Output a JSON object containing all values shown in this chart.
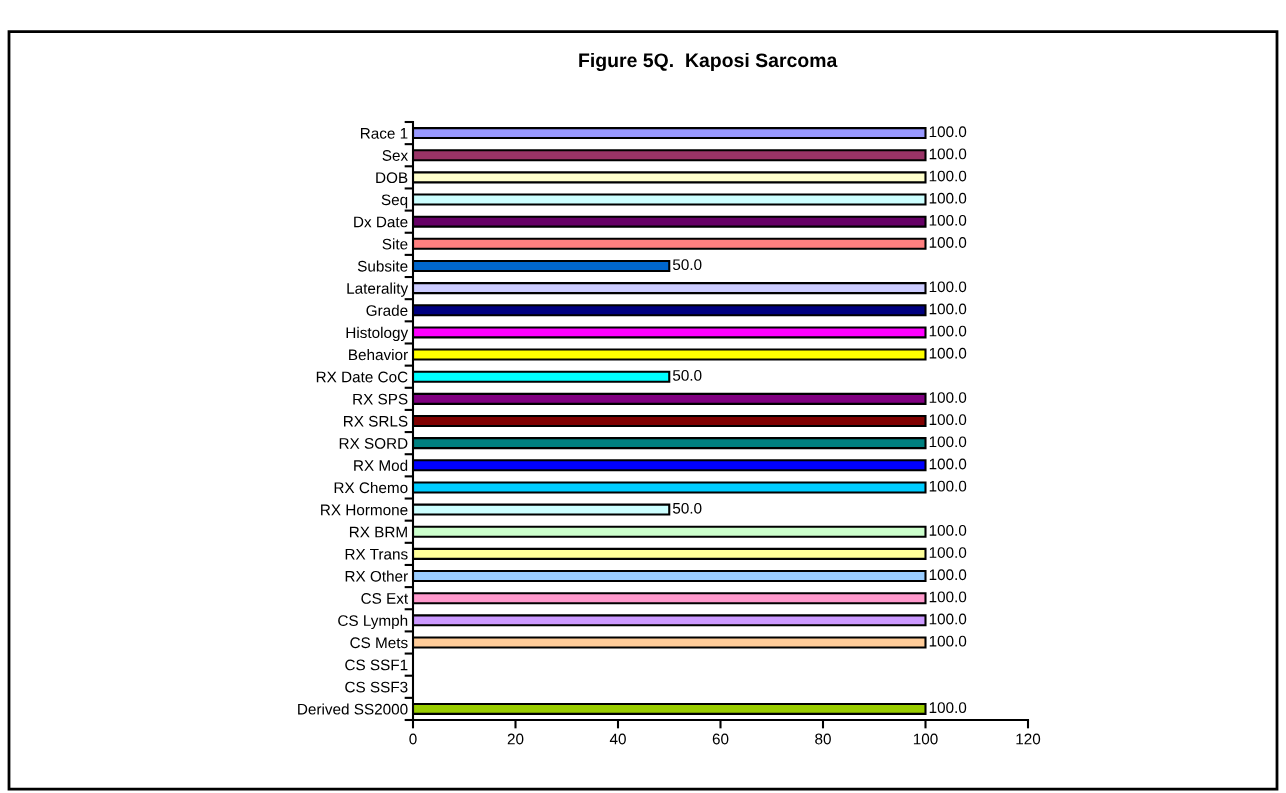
{
  "chart_data": {
    "type": "bar",
    "orientation": "horizontal",
    "title": "Figure 5Q.  Kaposi Sarcoma",
    "categories": [
      "Race 1",
      "Sex",
      "DOB",
      "Seq",
      "Dx Date",
      "Site",
      "Subsite",
      "Laterality",
      "Grade",
      "Histology",
      "Behavior",
      "RX Date CoC",
      "RX SPS",
      "RX SRLS",
      "RX SORD",
      "RX Mod",
      "RX Chemo",
      "RX Hormone",
      "RX BRM",
      "RX Trans",
      "RX Other",
      "CS Ext",
      "CS Lymph",
      "CS Mets",
      "CS SSF1",
      "CS SSF3",
      "Derived SS2000"
    ],
    "values": [
      100,
      100,
      100,
      100,
      100,
      100,
      50,
      100,
      100,
      100,
      100,
      50,
      100,
      100,
      100,
      100,
      100,
      50,
      100,
      100,
      100,
      100,
      100,
      100,
      null,
      null,
      100
    ],
    "value_labels": [
      "100.0",
      "100.0",
      "100.0",
      "100.0",
      "100.0",
      "100.0",
      "50.0",
      "100.0",
      "100.0",
      "100.0",
      "100.0",
      "50.0",
      "100.0",
      "100.0",
      "100.0",
      "100.0",
      "100.0",
      "50.0",
      "100.0",
      "100.0",
      "100.0",
      "100.0",
      "100.0",
      "100.0",
      null,
      null,
      "100.0"
    ],
    "colors": [
      "#9999ff",
      "#993366",
      "#ffffcc",
      "#ccffff",
      "#660066",
      "#ff8080",
      "#0066cc",
      "#ccccff",
      "#000080",
      "#ff00ff",
      "#ffff00",
      "#00ffff",
      "#800080",
      "#800000",
      "#008080",
      "#0000ff",
      "#00ccff",
      "#ccffff",
      "#ccffcc",
      "#ffff99",
      "#99ccff",
      "#ff99cc",
      "#cc99ff",
      "#ffcc99",
      null,
      null,
      "#99cc00"
    ],
    "xlim": [
      0,
      120
    ],
    "xticks": [
      0,
      20,
      40,
      60,
      80,
      100,
      120
    ],
    "grid": false,
    "legend": false
  }
}
